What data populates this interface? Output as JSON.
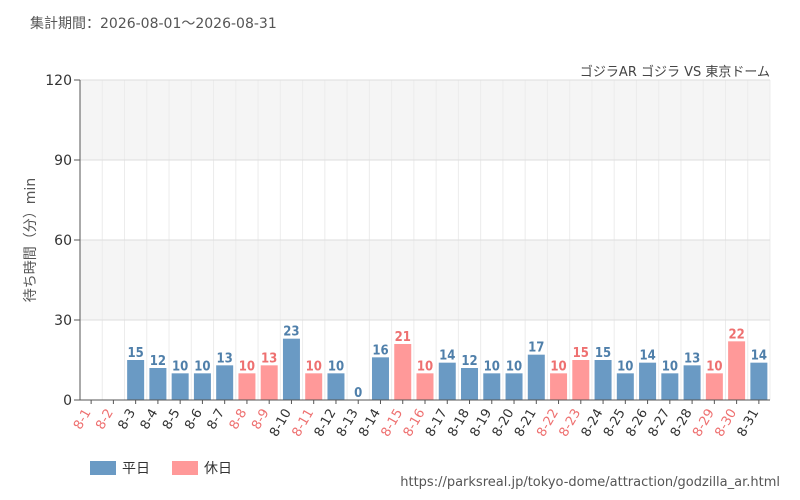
{
  "header": {
    "period": "集計期間：2026-08-01～2026-08-31"
  },
  "legend": {
    "weekday_label": "平日",
    "holiday_label": "休日"
  },
  "colors": {
    "weekday": "#6a9ac4",
    "holiday": "#ff9999",
    "weekday_text": "#4f7faa",
    "holiday_text": "#ee7070",
    "grid": "#dddddd",
    "band": "#f5f5f5"
  },
  "footer": {
    "source_url": "https://parksreal.jp/tokyo-dome/attraction/godzilla_ar.html"
  },
  "chart_data": {
    "type": "bar",
    "title": "ゴジラAR ゴジラ VS 東京ドーム",
    "xlabel": "",
    "ylabel": "待ち時間（分）min",
    "ylim": [
      0,
      120
    ],
    "yticks": [
      0,
      30,
      60,
      90,
      120
    ],
    "grid": true,
    "legend_position": "bottom-left",
    "categories": [
      "8-1",
      "8-2",
      "8-3",
      "8-4",
      "8-5",
      "8-6",
      "8-7",
      "8-8",
      "8-9",
      "8-10",
      "8-11",
      "8-12",
      "8-13",
      "8-14",
      "8-15",
      "8-16",
      "8-17",
      "8-18",
      "8-19",
      "8-20",
      "8-21",
      "8-22",
      "8-23",
      "8-24",
      "8-25",
      "8-26",
      "8-27",
      "8-28",
      "8-29",
      "8-30",
      "8-31"
    ],
    "values": [
      null,
      null,
      15,
      12,
      10,
      10,
      13,
      10,
      13,
      23,
      10,
      10,
      0,
      16,
      21,
      10,
      14,
      12,
      10,
      10,
      17,
      10,
      15,
      15,
      10,
      14,
      10,
      13,
      10,
      22,
      14
    ],
    "day_type": [
      "holiday",
      "holiday",
      "weekday",
      "weekday",
      "weekday",
      "weekday",
      "weekday",
      "holiday",
      "holiday",
      "weekday",
      "holiday",
      "weekday",
      "weekday",
      "weekday",
      "holiday",
      "holiday",
      "weekday",
      "weekday",
      "weekday",
      "weekday",
      "weekday",
      "holiday",
      "holiday",
      "weekday",
      "weekday",
      "weekday",
      "weekday",
      "weekday",
      "holiday",
      "holiday",
      "weekday"
    ],
    "series": [
      {
        "name": "平日"
      },
      {
        "name": "休日"
      }
    ]
  }
}
